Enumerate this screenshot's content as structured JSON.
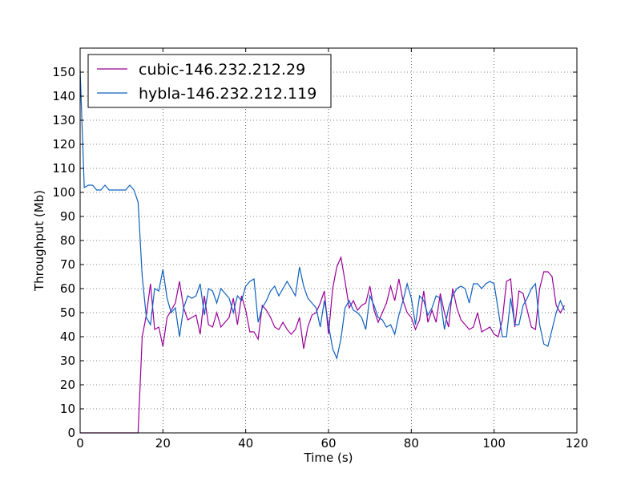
{
  "chart_data": {
    "type": "line",
    "title": "",
    "xlabel": "Time (s)",
    "ylabel": "Throughput (Mb)",
    "xlim": [
      0,
      120
    ],
    "ylim": [
      0,
      160
    ],
    "xticks": [
      0,
      20,
      40,
      60,
      80,
      100,
      120
    ],
    "yticks": [
      0,
      10,
      20,
      30,
      40,
      50,
      60,
      70,
      80,
      90,
      100,
      110,
      120,
      130,
      140,
      150
    ],
    "grid": true,
    "legend_position": "top-left",
    "series": [
      {
        "name": "cubic-146.232.212.29",
        "color": "#990099",
        "points": [
          [
            0,
            0
          ],
          [
            2,
            0
          ],
          [
            4,
            0
          ],
          [
            6,
            0
          ],
          [
            8,
            0
          ],
          [
            10,
            0
          ],
          [
            12,
            0
          ],
          [
            14,
            0
          ],
          [
            15,
            40
          ],
          [
            16,
            49
          ],
          [
            17,
            62
          ],
          [
            18,
            43
          ],
          [
            19,
            44
          ],
          [
            20,
            36
          ],
          [
            21,
            48
          ],
          [
            22,
            51
          ],
          [
            23,
            54
          ],
          [
            24,
            63
          ],
          [
            25,
            52
          ],
          [
            26,
            47
          ],
          [
            27,
            48
          ],
          [
            28,
            49
          ],
          [
            29,
            41
          ],
          [
            30,
            57
          ],
          [
            31,
            45
          ],
          [
            32,
            44
          ],
          [
            33,
            50
          ],
          [
            34,
            44
          ],
          [
            35,
            46
          ],
          [
            36,
            48
          ],
          [
            37,
            56
          ],
          [
            38,
            45
          ],
          [
            39,
            57
          ],
          [
            40,
            51
          ],
          [
            41,
            42
          ],
          [
            42,
            42
          ],
          [
            43,
            39
          ],
          [
            44,
            53
          ],
          [
            45,
            51
          ],
          [
            46,
            48
          ],
          [
            47,
            44
          ],
          [
            48,
            43
          ],
          [
            49,
            46
          ],
          [
            50,
            43
          ],
          [
            51,
            41
          ],
          [
            52,
            43
          ],
          [
            53,
            48
          ],
          [
            54,
            35
          ],
          [
            55,
            44
          ],
          [
            56,
            49
          ],
          [
            57,
            50
          ],
          [
            58,
            54
          ],
          [
            59,
            59
          ],
          [
            60,
            41
          ],
          [
            61,
            60
          ],
          [
            62,
            69
          ],
          [
            63,
            73
          ],
          [
            64,
            63
          ],
          [
            65,
            52
          ],
          [
            66,
            55
          ],
          [
            67,
            51
          ],
          [
            68,
            53
          ],
          [
            69,
            54
          ],
          [
            70,
            61
          ],
          [
            71,
            51
          ],
          [
            72,
            46
          ],
          [
            73,
            50
          ],
          [
            74,
            54
          ],
          [
            75,
            61
          ],
          [
            76,
            55
          ],
          [
            77,
            64
          ],
          [
            78,
            55
          ],
          [
            79,
            50
          ],
          [
            80,
            48
          ],
          [
            81,
            43
          ],
          [
            82,
            47
          ],
          [
            83,
            59
          ],
          [
            84,
            46
          ],
          [
            85,
            51
          ],
          [
            86,
            46
          ],
          [
            87,
            58
          ],
          [
            88,
            50
          ],
          [
            89,
            44
          ],
          [
            90,
            60
          ],
          [
            91,
            52
          ],
          [
            92,
            47
          ],
          [
            93,
            45
          ],
          [
            94,
            43
          ],
          [
            95,
            44
          ],
          [
            96,
            50
          ],
          [
            97,
            42
          ],
          [
            98,
            43
          ],
          [
            99,
            44
          ],
          [
            100,
            41
          ],
          [
            101,
            40
          ],
          [
            102,
            47
          ],
          [
            103,
            63
          ],
          [
            104,
            64
          ],
          [
            105,
            44
          ],
          [
            106,
            59
          ],
          [
            107,
            58
          ],
          [
            108,
            51
          ],
          [
            109,
            44
          ],
          [
            110,
            43
          ],
          [
            111,
            60
          ],
          [
            112,
            67
          ],
          [
            113,
            67
          ],
          [
            114,
            65
          ],
          [
            115,
            53
          ],
          [
            116,
            50
          ],
          [
            117,
            53
          ]
        ]
      },
      {
        "name": "hybla-146.232.212.119",
        "color": "#0f60bf",
        "points": [
          [
            0,
            151
          ],
          [
            1,
            102
          ],
          [
            2,
            103
          ],
          [
            3,
            103
          ],
          [
            4,
            101
          ],
          [
            5,
            101
          ],
          [
            6,
            103
          ],
          [
            7,
            101
          ],
          [
            8,
            101
          ],
          [
            9,
            101
          ],
          [
            10,
            101
          ],
          [
            11,
            101
          ],
          [
            12,
            103
          ],
          [
            13,
            101
          ],
          [
            14,
            96
          ],
          [
            15,
            65
          ],
          [
            16,
            48
          ],
          [
            17,
            45
          ],
          [
            18,
            60
          ],
          [
            19,
            59
          ],
          [
            20,
            68
          ],
          [
            21,
            56
          ],
          [
            22,
            50
          ],
          [
            23,
            52
          ],
          [
            24,
            40
          ],
          [
            25,
            52
          ],
          [
            26,
            57
          ],
          [
            27,
            56
          ],
          [
            28,
            57
          ],
          [
            29,
            62
          ],
          [
            30,
            49
          ],
          [
            31,
            60
          ],
          [
            32,
            59
          ],
          [
            33,
            54
          ],
          [
            34,
            60
          ],
          [
            35,
            58
          ],
          [
            36,
            56
          ],
          [
            37,
            50
          ],
          [
            38,
            57
          ],
          [
            39,
            55
          ],
          [
            40,
            61
          ],
          [
            41,
            63
          ],
          [
            42,
            64
          ],
          [
            43,
            46
          ],
          [
            44,
            52
          ],
          [
            45,
            55
          ],
          [
            46,
            59
          ],
          [
            47,
            61
          ],
          [
            48,
            57
          ],
          [
            49,
            60
          ],
          [
            50,
            63
          ],
          [
            51,
            60
          ],
          [
            52,
            57
          ],
          [
            53,
            69
          ],
          [
            54,
            61
          ],
          [
            55,
            56
          ],
          [
            56,
            54
          ],
          [
            57,
            52
          ],
          [
            58,
            44
          ],
          [
            59,
            55
          ],
          [
            60,
            45
          ],
          [
            61,
            35
          ],
          [
            62,
            31
          ],
          [
            63,
            39
          ],
          [
            64,
            52
          ],
          [
            65,
            55
          ],
          [
            66,
            51
          ],
          [
            67,
            50
          ],
          [
            68,
            48
          ],
          [
            69,
            43
          ],
          [
            70,
            57
          ],
          [
            71,
            53
          ],
          [
            72,
            48
          ],
          [
            73,
            47
          ],
          [
            74,
            44
          ],
          [
            75,
            45
          ],
          [
            76,
            41
          ],
          [
            77,
            49
          ],
          [
            78,
            55
          ],
          [
            79,
            62
          ],
          [
            80,
            56
          ],
          [
            81,
            45
          ],
          [
            82,
            57
          ],
          [
            83,
            55
          ],
          [
            84,
            49
          ],
          [
            85,
            52
          ],
          [
            86,
            57
          ],
          [
            87,
            56
          ],
          [
            88,
            43
          ],
          [
            89,
            52
          ],
          [
            90,
            57
          ],
          [
            91,
            60
          ],
          [
            92,
            61
          ],
          [
            93,
            60
          ],
          [
            94,
            54
          ],
          [
            95,
            62
          ],
          [
            96,
            62
          ],
          [
            97,
            60
          ],
          [
            98,
            62
          ],
          [
            99,
            63
          ],
          [
            100,
            62
          ],
          [
            101,
            51
          ],
          [
            102,
            40
          ],
          [
            103,
            40
          ],
          [
            104,
            56
          ],
          [
            105,
            45
          ],
          [
            106,
            45
          ],
          [
            107,
            53
          ],
          [
            108,
            56
          ],
          [
            109,
            60
          ],
          [
            110,
            62
          ],
          [
            111,
            45
          ],
          [
            112,
            37
          ],
          [
            113,
            36
          ],
          [
            114,
            43
          ],
          [
            115,
            50
          ],
          [
            116,
            55
          ],
          [
            117,
            51
          ]
        ]
      }
    ]
  }
}
